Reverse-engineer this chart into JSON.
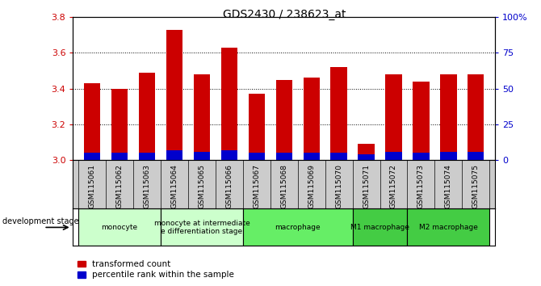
{
  "title": "GDS2430 / 238623_at",
  "samples": [
    "GSM115061",
    "GSM115062",
    "GSM115063",
    "GSM115064",
    "GSM115065",
    "GSM115066",
    "GSM115067",
    "GSM115068",
    "GSM115069",
    "GSM115070",
    "GSM115071",
    "GSM115072",
    "GSM115073",
    "GSM115074",
    "GSM115075"
  ],
  "transformed_count": [
    3.43,
    3.4,
    3.49,
    3.73,
    3.48,
    3.63,
    3.37,
    3.45,
    3.46,
    3.52,
    3.09,
    3.48,
    3.44,
    3.48,
    3.48
  ],
  "percentile_rank_pct": [
    5,
    5,
    5,
    7,
    6,
    7,
    5,
    5,
    5,
    5,
    4,
    6,
    5,
    6,
    6
  ],
  "ylim_left": [
    3.0,
    3.8
  ],
  "ylim_right": [
    0,
    100
  ],
  "yticks_left": [
    3.0,
    3.2,
    3.4,
    3.6,
    3.8
  ],
  "yticks_right": [
    0,
    25,
    50,
    75,
    100
  ],
  "ytick_labels_right": [
    "0",
    "25",
    "50",
    "75",
    "100%"
  ],
  "bar_color_red": "#cc0000",
  "bar_color_blue": "#0000cc",
  "bar_width": 0.6,
  "groups_data": [
    {
      "label": "monocyte",
      "indices": [
        0,
        1,
        2
      ],
      "color": "#ccffcc"
    },
    {
      "label": "monocyte at intermediate\ne differentiation stage",
      "indices": [
        3,
        4,
        5
      ],
      "color": "#ccffcc"
    },
    {
      "label": "macrophage",
      "indices": [
        6,
        7,
        8,
        9
      ],
      "color": "#66ee66"
    },
    {
      "label": "M1 macrophage",
      "indices": [
        10,
        11
      ],
      "color": "#44cc44"
    },
    {
      "label": "M2 macrophage",
      "indices": [
        12,
        13,
        14
      ],
      "color": "#44cc44"
    }
  ],
  "legend_red_label": "transformed count",
  "legend_blue_label": "percentile rank within the sample",
  "dev_stage_label": "development stage",
  "tick_color_left": "#cc0000",
  "tick_color_right": "#0000cc",
  "sample_bg_color": "#cccccc",
  "fig_width": 6.7,
  "fig_height": 3.54,
  "dpi": 100
}
